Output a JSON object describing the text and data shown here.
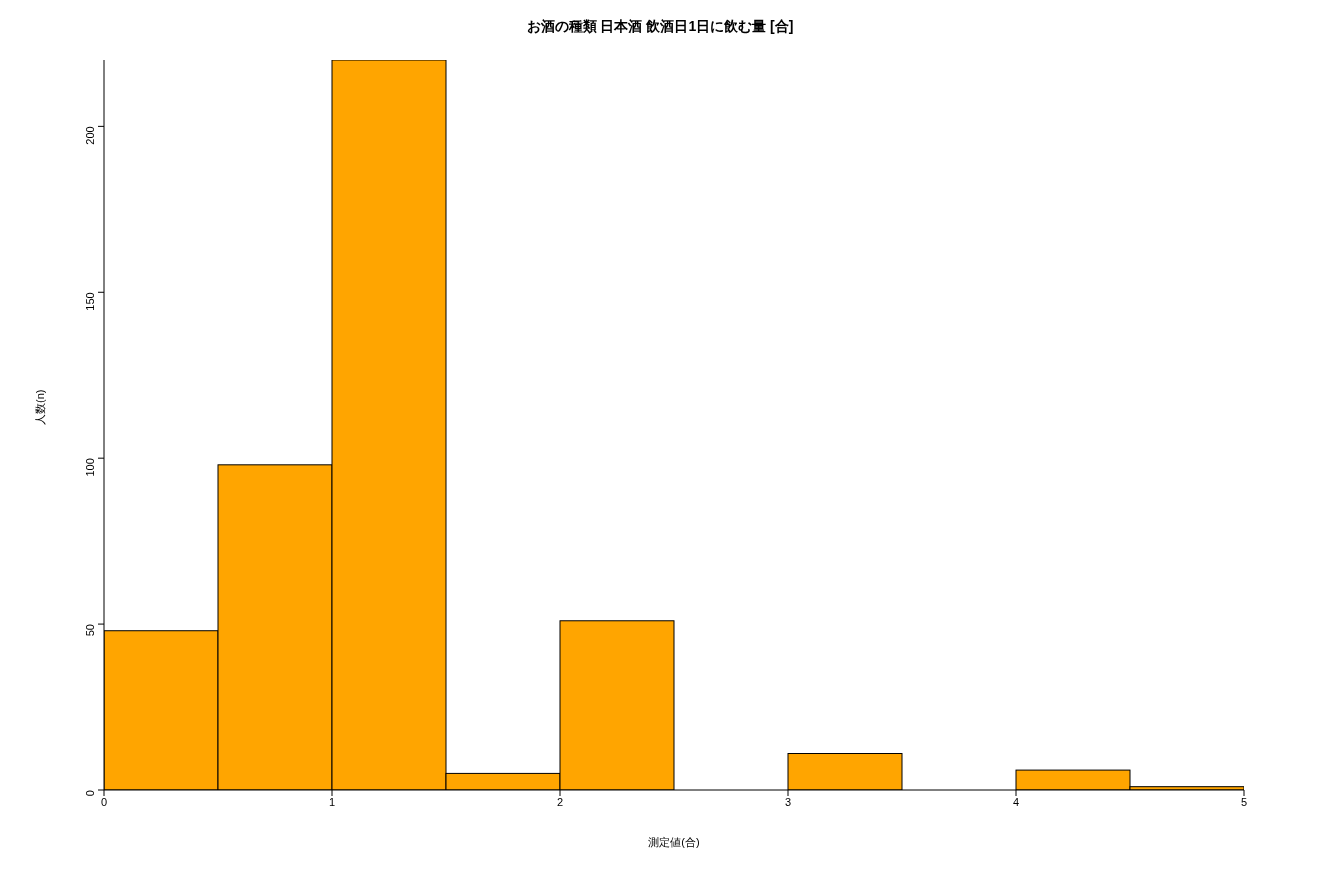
{
  "chart_data": {
    "type": "histogram",
    "title": "お酒の種類 日本酒 飲酒日1日に飲む量 [合]",
    "xlabel": "測定値(合)",
    "ylabel": "人数(n)",
    "bins": [
      0,
      0.5,
      1,
      1.5,
      2,
      2.5,
      3,
      3.5,
      4,
      4.5,
      5
    ],
    "values": [
      48,
      98,
      220,
      5,
      51,
      0,
      11,
      0,
      6,
      1
    ],
    "color": "#ffa500",
    "xlim": [
      0,
      5
    ],
    "xticks": [
      0,
      1,
      2,
      3,
      4,
      5
    ],
    "ylim": [
      0,
      220
    ],
    "yticks": [
      0,
      50,
      100,
      150,
      200
    ],
    "grid": false,
    "legend": false
  }
}
